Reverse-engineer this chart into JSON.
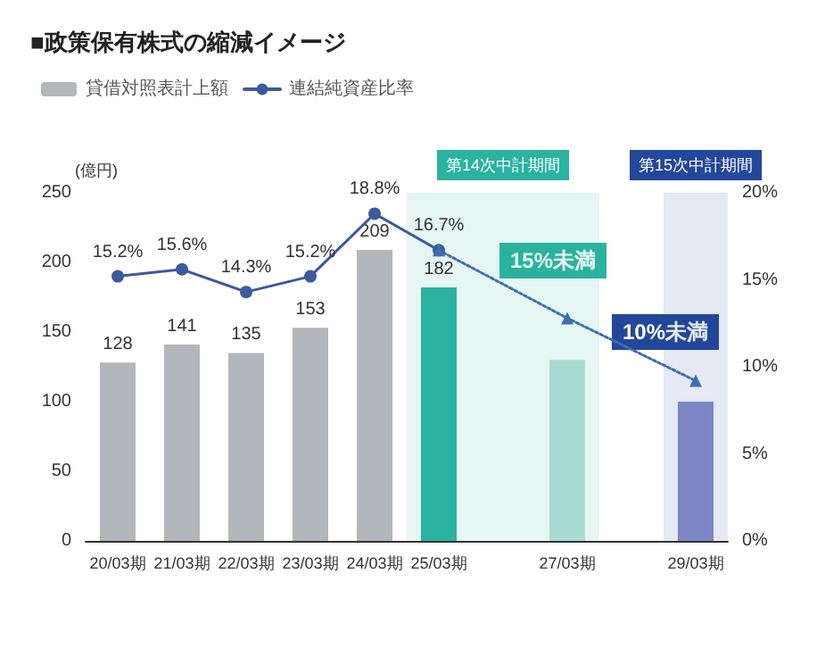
{
  "chart_data": {
    "type": "bar",
    "title": "■政策保有株式の縮減イメージ",
    "ylabel": "(億円)",
    "categories": [
      "20/03期",
      "21/03期",
      "22/03期",
      "23/03期",
      "24/03期",
      "25/03期",
      null,
      "27/03期",
      null,
      "29/03期"
    ],
    "series": [
      {
        "name": "貸借対照表計上額",
        "color": "#b3b6ba",
        "colors": [
          "#b3b6ba",
          "#b3b6ba",
          "#b3b6ba",
          "#b3b6ba",
          "#b3b6ba",
          "#2ab3a0",
          null,
          "#a8dcd2",
          null,
          "#7b86c4"
        ],
        "values": [
          128,
          141,
          135,
          153,
          209,
          182,
          null,
          130,
          null,
          100
        ],
        "value_labels": [
          "128",
          "141",
          "135",
          "153",
          "209",
          "182",
          null,
          null,
          null,
          null
        ]
      },
      {
        "name": "連結純資産比率",
        "type": "line",
        "axis": "y2",
        "color": "#3d5a9e",
        "marker": "circle",
        "line_style": "solid",
        "values": [
          15.2,
          15.6,
          14.3,
          15.2,
          18.8,
          16.7,
          null,
          null,
          null,
          null
        ],
        "value_labels": [
          "15.2%",
          "15.6%",
          "14.3%",
          "15.2%",
          "18.8%",
          "16.7%",
          null,
          null,
          null,
          null
        ]
      },
      {
        "type": "line",
        "axis": "y2",
        "color": "#3d6fb0",
        "marker": "triangle",
        "line_style": "dotted",
        "values": [
          null,
          null,
          null,
          null,
          null,
          16.7,
          null,
          12.8,
          null,
          9.2
        ]
      }
    ],
    "ylim": [
      0,
      250
    ],
    "yticks": [
      0,
      50,
      100,
      150,
      200,
      250
    ],
    "y2lim": [
      0,
      20
    ],
    "y2ticks": [
      {
        "value": 0,
        "label": "0%"
      },
      {
        "value": 5,
        "label": "5%"
      },
      {
        "value": 10,
        "label": "10%"
      },
      {
        "value": 15,
        "label": "15%"
      },
      {
        "value": 20,
        "label": "20%"
      }
    ],
    "bands": [
      {
        "axis": "x",
        "from": "25/03期",
        "to": "27/03期",
        "label": "第14次中計期間",
        "color": "#2ab3a0"
      },
      {
        "axis": "x",
        "from": "29/03期",
        "to": "29/03期",
        "label": "第15次中計期間",
        "color": "#23479a"
      }
    ],
    "annotations": [
      "15%未満",
      "10%未満"
    ],
    "legend": "top left",
    "grid": false
  }
}
